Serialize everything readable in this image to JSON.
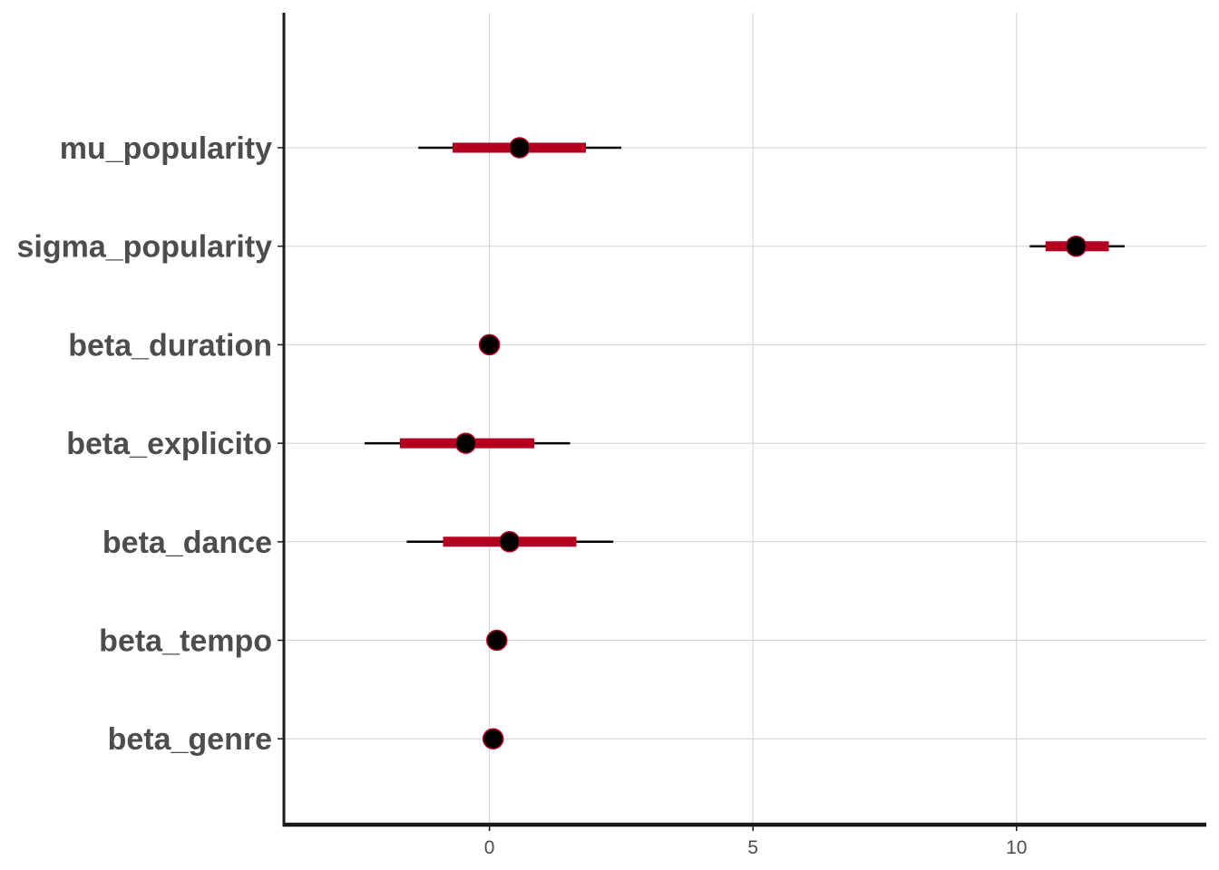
{
  "chart_data": {
    "type": "interval",
    "title": "",
    "xlabel": "",
    "ylabel": "",
    "xlim": [
      -3.9,
      13.6
    ],
    "x_ticks": [
      0,
      5,
      10
    ],
    "x_tick_labels": [
      "0",
      "5",
      "10"
    ],
    "grid": true,
    "legend": "none",
    "colors": {
      "inner_interval": "#b2001e",
      "outer_interval": "#000000",
      "point_fill": "#000000",
      "point_stroke": "#b2001e",
      "grid": "#d0d0d0",
      "axis": "#1a1a1a",
      "label": "#4d4d4d"
    },
    "parameters": [
      {
        "name": "mu_popularity",
        "estimate": 0.57,
        "inner": [
          -0.7,
          1.83
        ],
        "outer": [
          -1.35,
          2.5
        ]
      },
      {
        "name": "sigma_popularity",
        "estimate": 11.13,
        "inner": [
          10.55,
          11.75
        ],
        "outer": [
          10.25,
          12.05
        ]
      },
      {
        "name": "beta_duration",
        "estimate": 0.0,
        "inner": [
          -0.05,
          0.05
        ],
        "outer": [
          -0.08,
          0.08
        ]
      },
      {
        "name": "beta_explicito",
        "estimate": -0.45,
        "inner": [
          -1.7,
          0.85
        ],
        "outer": [
          -2.37,
          1.53
        ]
      },
      {
        "name": "beta_dance",
        "estimate": 0.38,
        "inner": [
          -0.88,
          1.65
        ],
        "outer": [
          -1.57,
          2.35
        ]
      },
      {
        "name": "beta_tempo",
        "estimate": 0.14,
        "inner": [
          0.1,
          0.18
        ],
        "outer": [
          0.07,
          0.21
        ]
      },
      {
        "name": "beta_genre",
        "estimate": 0.07,
        "inner": [
          0.03,
          0.11
        ],
        "outer": [
          0.0,
          0.14
        ]
      }
    ]
  }
}
